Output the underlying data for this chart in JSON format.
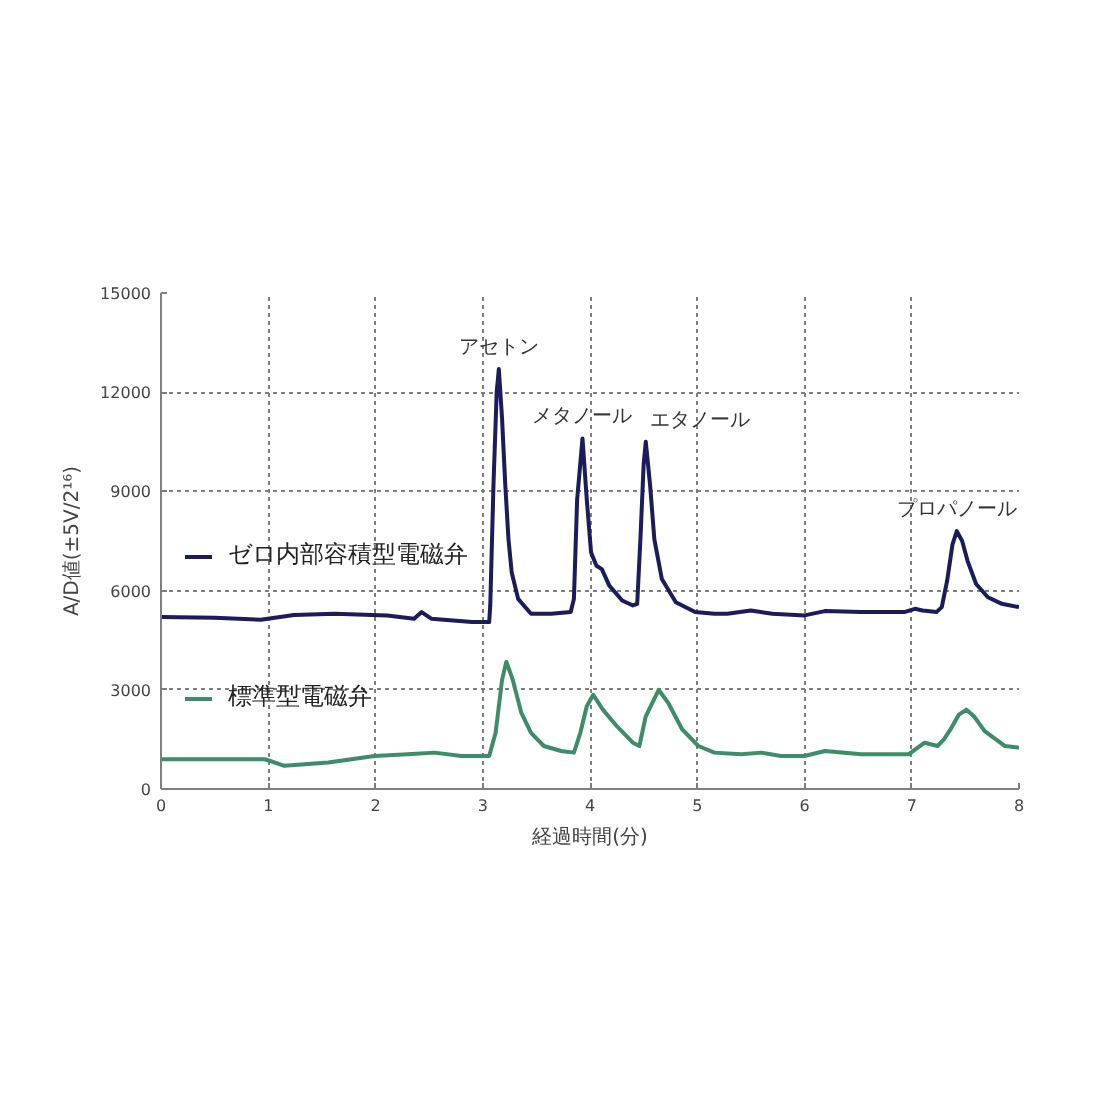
{
  "chart_data": {
    "type": "line",
    "xlabel": "経過時間(分)",
    "ylabel": "A/D値(±5V/2¹⁶)",
    "xlim": [
      0,
      8
    ],
    "ylim": [
      0,
      15000
    ],
    "xticks": [
      0,
      1,
      2,
      3,
      4,
      5,
      6,
      7,
      8
    ],
    "yticks": [
      0,
      3000,
      6000,
      9000,
      12000,
      15000
    ],
    "grid": true,
    "legend": "left",
    "line_style": "solid",
    "series": [
      {
        "name": "ゼロ内部容積型電磁弁",
        "color": "#1b1b5e",
        "x": [
          0,
          0.5,
          0.93,
          1.24,
          1.62,
          2.11,
          2.36,
          2.43,
          2.52,
          2.9,
          3.06,
          3.07,
          3.1,
          3.13,
          3.15,
          3.18,
          3.21,
          3.24,
          3.27,
          3.33,
          3.45,
          3.64,
          3.82,
          3.85,
          3.88,
          3.93,
          3.97,
          4.01,
          4.06,
          4.11,
          4.18,
          4.3,
          4.4,
          4.44,
          4.47,
          4.5,
          4.52,
          4.56,
          4.6,
          4.67,
          4.8,
          4.98,
          5.16,
          5.28,
          5.5,
          5.7,
          6.0,
          6.19,
          6.53,
          6.93,
          7.03,
          7.1,
          7.23,
          7.28,
          7.33,
          7.38,
          7.42,
          7.47,
          7.52,
          7.6,
          7.71,
          7.84,
          8.0
        ],
        "values": [
          5200,
          5180,
          5120,
          5260,
          5300,
          5250,
          5150,
          5350,
          5150,
          5050,
          5050,
          5550,
          9200,
          12000,
          12700,
          11200,
          9200,
          7550,
          6550,
          5750,
          5300,
          5300,
          5350,
          5750,
          8750,
          10600,
          8750,
          7150,
          6750,
          6650,
          6150,
          5700,
          5550,
          5600,
          7550,
          9800,
          10500,
          9200,
          7550,
          6350,
          5650,
          5350,
          5300,
          5300,
          5400,
          5300,
          5250,
          5380,
          5350,
          5350,
          5450,
          5400,
          5350,
          5500,
          6300,
          7400,
          7800,
          7500,
          6900,
          6200,
          5800,
          5600,
          5500
        ]
      },
      {
        "name": "標準型電磁弁",
        "color": "#3d8c6a",
        "x": [
          0,
          0.5,
          0.97,
          1.15,
          1.56,
          1.99,
          2.3,
          2.55,
          2.8,
          3.06,
          3.12,
          3.18,
          3.22,
          3.28,
          3.36,
          3.45,
          3.57,
          3.73,
          3.85,
          3.91,
          3.97,
          4.03,
          4.12,
          4.25,
          4.4,
          4.46,
          4.52,
          4.64,
          4.73,
          4.86,
          5.01,
          5.16,
          5.41,
          5.6,
          5.78,
          6.0,
          6.19,
          6.53,
          6.97,
          7.12,
          7.24,
          7.3,
          7.37,
          7.44,
          7.51,
          7.58,
          7.68,
          7.87,
          8.0
        ],
        "values": [
          900,
          900,
          900,
          700,
          800,
          1000,
          1050,
          1100,
          1000,
          1000,
          1700,
          3300,
          3850,
          3300,
          2300,
          1700,
          1300,
          1150,
          1100,
          1700,
          2500,
          2850,
          2400,
          1900,
          1400,
          1300,
          2200,
          3000,
          2600,
          1800,
          1300,
          1100,
          1050,
          1100,
          1000,
          1000,
          1150,
          1050,
          1050,
          1400,
          1300,
          1500,
          1850,
          2250,
          2400,
          2200,
          1750,
          1300,
          1250
        ]
      }
    ],
    "annotations": [
      {
        "text": "アセトン",
        "x": 3.15,
        "y": 12700
      },
      {
        "text": "メタノール",
        "x": 3.93,
        "y": 10600
      },
      {
        "text": "エタノール",
        "x": 4.52,
        "y": 10500
      },
      {
        "text": "プロパノール",
        "x": 7.42,
        "y": 7800
      }
    ]
  }
}
